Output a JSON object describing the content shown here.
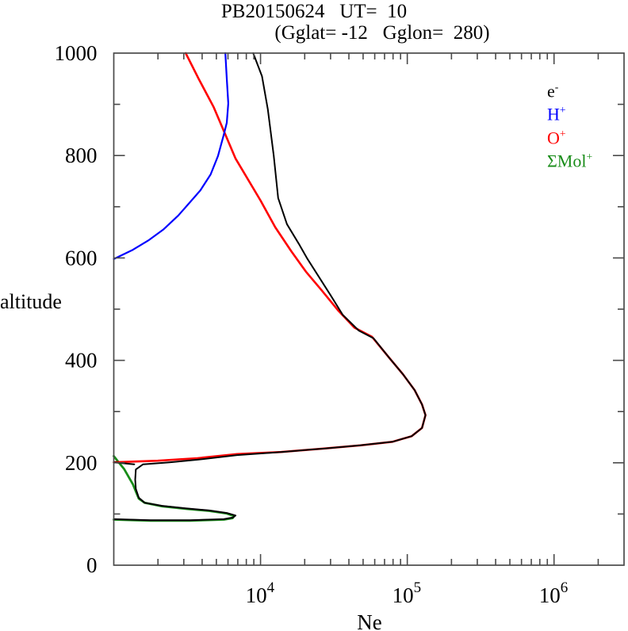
{
  "header": {
    "title_line1": "PB20150624   UT=  10",
    "title_line2": "(Gglat= -12   Gglon=  280)"
  },
  "chart_data": {
    "type": "line",
    "title": "PB20150624   UT=  10",
    "subtitle": "(Gglat= -12   Gglon=  280)",
    "xlabel": "Ne",
    "ylabel": "altitude",
    "x_scale": "log",
    "x_range_log10": [
      3,
      6.477
    ],
    "x_major_exponents": [
      4,
      5,
      6
    ],
    "y_range": [
      0,
      1000
    ],
    "y_major_ticks": [
      0,
      200,
      400,
      600,
      800,
      1000
    ],
    "y_minor_step": 100,
    "grid": false,
    "legend_position": "upper-right-inside",
    "axis_color": "#4a4a4a",
    "legend": [
      {
        "base": "e",
        "sup": "-",
        "color": "#000000"
      },
      {
        "base": "H",
        "sup": "+",
        "color": "#0000ff"
      },
      {
        "base": "O",
        "sup": "+",
        "color": "#ff0000"
      },
      {
        "base": "ΣMol",
        "sup": "+",
        "color": "#188c18"
      }
    ],
    "series": [
      {
        "name": "e-",
        "color": "#000000",
        "width": 2.0,
        "points_format": [
          "log10_Ne",
          "altitude_km"
        ],
        "segments": [
          [
            [
              3.95,
              1000
            ],
            [
              4.01,
              955
            ],
            [
              4.05,
              890
            ],
            [
              4.09,
              800
            ],
            [
              4.12,
              717
            ],
            [
              4.18,
              666
            ],
            [
              4.26,
              628
            ],
            [
              4.32,
              598
            ],
            [
              4.4,
              562
            ],
            [
              4.48,
              526
            ],
            [
              4.56,
              489
            ],
            [
              4.67,
              458
            ],
            [
              4.77,
              443
            ],
            [
              4.88,
              404
            ],
            [
              4.97,
              373
            ],
            [
              5.05,
              342
            ],
            [
              5.1,
              314
            ],
            [
              5.124,
              293
            ],
            [
              5.1,
              268
            ],
            [
              5.03,
              252
            ],
            [
              4.9,
              241
            ],
            [
              4.68,
              234
            ],
            [
              4.44,
              228
            ],
            [
              4.14,
              221
            ],
            [
              3.84,
              215
            ],
            [
              3.57,
              206
            ],
            [
              3.38,
              201
            ],
            [
              3.2,
              197
            ],
            [
              3.15,
              187
            ],
            [
              3.146,
              167
            ],
            [
              3.15,
              149
            ],
            [
              3.17,
              132
            ],
            [
              3.21,
              122
            ],
            [
              3.33,
              116
            ],
            [
              3.49,
              111
            ],
            [
              3.65,
              107
            ],
            [
              3.77,
              102
            ],
            [
              3.83,
              97
            ],
            [
              3.81,
              93
            ],
            [
              3.75,
              90
            ],
            [
              3.52,
              88
            ],
            [
              3.25,
              88
            ],
            [
              3.0,
              90
            ]
          ],
          [
            [
              3.0,
              201
            ],
            [
              3.14,
              197
            ]
          ]
        ]
      },
      {
        "name": "H+",
        "color": "#0000ff",
        "width": 2.2,
        "points_format": [
          "log10_Ne",
          "altitude_km"
        ],
        "segments": [
          [
            [
              3.76,
              1000
            ],
            [
              3.77,
              950
            ],
            [
              3.78,
              902
            ],
            [
              3.77,
              864
            ],
            [
              3.75,
              841
            ],
            [
              3.71,
              799
            ],
            [
              3.66,
              763
            ],
            [
              3.59,
              732
            ],
            [
              3.52,
              709
            ],
            [
              3.44,
              683
            ],
            [
              3.34,
              656
            ],
            [
              3.24,
              635
            ],
            [
              3.13,
              616
            ],
            [
              3.0,
              598
            ]
          ]
        ]
      },
      {
        "name": "O+",
        "color": "#ff0000",
        "width": 2.6,
        "points_format": [
          "log10_Ne",
          "altitude_km"
        ],
        "segments": [
          [
            [
              3.49,
              1000
            ],
            [
              3.58,
              949
            ],
            [
              3.68,
              895
            ],
            [
              3.75,
              848
            ],
            [
              3.83,
              794
            ],
            [
              4.0,
              712
            ],
            [
              4.1,
              660
            ],
            [
              4.21,
              613
            ],
            [
              4.31,
              573
            ],
            [
              4.41,
              539
            ],
            [
              4.53,
              497
            ],
            [
              4.64,
              464
            ],
            [
              4.76,
              446
            ],
            [
              4.88,
              404
            ],
            [
              4.97,
              373
            ],
            [
              5.05,
              342
            ],
            [
              5.1,
              314
            ],
            [
              5.124,
              293
            ],
            [
              5.1,
              268
            ],
            [
              5.03,
              252
            ],
            [
              4.9,
              241
            ],
            [
              4.68,
              234
            ],
            [
              4.44,
              228
            ],
            [
              4.14,
              221
            ],
            [
              3.84,
              217
            ],
            [
              3.57,
              209
            ],
            [
              3.3,
              204
            ],
            [
              3.0,
              201
            ]
          ]
        ]
      },
      {
        "name": "Mol+",
        "color": "#188c18",
        "width": 2.8,
        "points_format": [
          "log10_Ne",
          "altitude_km"
        ],
        "segments": [
          [
            [
              3.0,
              213
            ],
            [
              3.03,
              202
            ],
            [
              3.07,
              188
            ],
            [
              3.1,
              173
            ],
            [
              3.13,
              158
            ],
            [
              3.15,
              144
            ],
            [
              3.17,
              130
            ],
            [
              3.21,
              122
            ],
            [
              3.33,
              115
            ],
            [
              3.49,
              110
            ],
            [
              3.65,
              106
            ],
            [
              3.77,
              101
            ],
            [
              3.82,
              96
            ],
            [
              3.81,
              92
            ],
            [
              3.75,
              89
            ],
            [
              3.52,
              87
            ],
            [
              3.25,
              87
            ],
            [
              3.0,
              89
            ]
          ]
        ]
      }
    ],
    "annotations": {
      "f2_peak": {
        "Ne": 130000,
        "altitude_km": 295
      },
      "e_region_peak": {
        "Ne": 6700,
        "altitude_km": 100
      }
    }
  }
}
